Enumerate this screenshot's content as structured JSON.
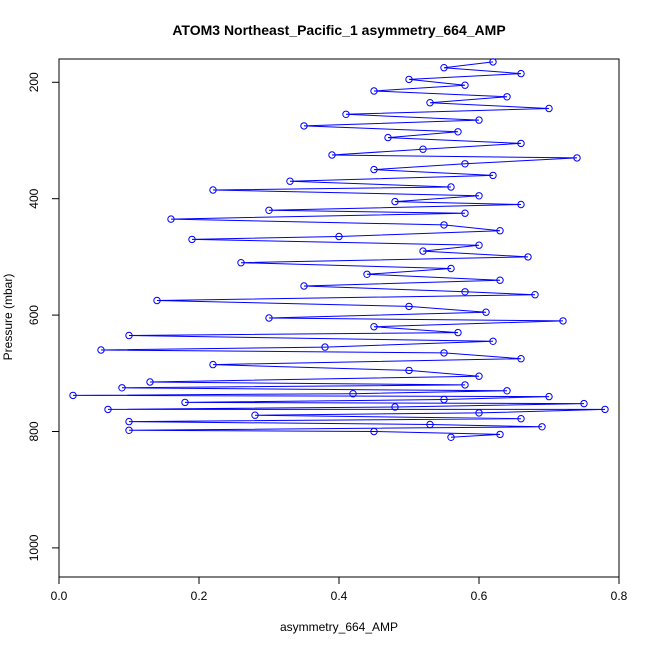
{
  "chart_data": {
    "type": "scatter",
    "title": "ATOM3 Northeast_Pacific_1 asymmetry_664_AMP",
    "xlabel": "asymmetry_664_AMP",
    "ylabel": "Pressure (mbar)",
    "xlim": [
      0.0,
      0.8
    ],
    "ylim": [
      1050,
      160
    ],
    "y_inverted": true,
    "xticks": [
      0.0,
      0.2,
      0.4,
      0.6,
      0.8
    ],
    "xtick_labels": [
      "0.0",
      "0.2",
      "0.4",
      "0.6",
      "0.8"
    ],
    "yticks": [
      200,
      400,
      600,
      800,
      1000
    ],
    "ytick_labels": [
      "200",
      "400",
      "600",
      "800",
      "1000"
    ],
    "grid": false,
    "legend": "none",
    "marker": "open-circle",
    "connected": true,
    "series_color": "#0000ff",
    "series": [
      {
        "points": [
          [
            0.62,
            165
          ],
          [
            0.55,
            175
          ],
          [
            0.66,
            185
          ],
          [
            0.5,
            195
          ],
          [
            0.58,
            205
          ],
          [
            0.45,
            215
          ],
          [
            0.64,
            225
          ],
          [
            0.53,
            235
          ],
          [
            0.7,
            245
          ],
          [
            0.41,
            255
          ],
          [
            0.6,
            265
          ],
          [
            0.35,
            275
          ],
          [
            0.57,
            285
          ],
          [
            0.47,
            295
          ],
          [
            0.66,
            305
          ],
          [
            0.52,
            315
          ],
          [
            0.39,
            325
          ],
          [
            0.74,
            330
          ],
          [
            0.58,
            340
          ],
          [
            0.45,
            350
          ],
          [
            0.62,
            360
          ],
          [
            0.33,
            370
          ],
          [
            0.56,
            380
          ],
          [
            0.22,
            385
          ],
          [
            0.6,
            395
          ],
          [
            0.48,
            405
          ],
          [
            0.66,
            410
          ],
          [
            0.3,
            420
          ],
          [
            0.58,
            425
          ],
          [
            0.16,
            435
          ],
          [
            0.55,
            445
          ],
          [
            0.63,
            455
          ],
          [
            0.4,
            465
          ],
          [
            0.19,
            470
          ],
          [
            0.6,
            480
          ],
          [
            0.52,
            490
          ],
          [
            0.67,
            500
          ],
          [
            0.26,
            510
          ],
          [
            0.56,
            520
          ],
          [
            0.44,
            530
          ],
          [
            0.63,
            540
          ],
          [
            0.35,
            550
          ],
          [
            0.58,
            560
          ],
          [
            0.68,
            565
          ],
          [
            0.14,
            575
          ],
          [
            0.5,
            585
          ],
          [
            0.61,
            595
          ],
          [
            0.3,
            605
          ],
          [
            0.72,
            610
          ],
          [
            0.45,
            620
          ],
          [
            0.57,
            630
          ],
          [
            0.1,
            635
          ],
          [
            0.62,
            645
          ],
          [
            0.38,
            655
          ],
          [
            0.06,
            660
          ],
          [
            0.55,
            665
          ],
          [
            0.66,
            675
          ],
          [
            0.22,
            685
          ],
          [
            0.5,
            695
          ],
          [
            0.6,
            705
          ],
          [
            0.13,
            715
          ],
          [
            0.58,
            720
          ],
          [
            0.09,
            725
          ],
          [
            0.64,
            730
          ],
          [
            0.42,
            735
          ],
          [
            0.02,
            738
          ],
          [
            0.7,
            740
          ],
          [
            0.55,
            745
          ],
          [
            0.18,
            750
          ],
          [
            0.75,
            752
          ],
          [
            0.48,
            758
          ],
          [
            0.07,
            762
          ],
          [
            0.78,
            762
          ],
          [
            0.6,
            768
          ],
          [
            0.28,
            772
          ],
          [
            0.66,
            778
          ],
          [
            0.1,
            783
          ],
          [
            0.53,
            788
          ],
          [
            0.69,
            792
          ],
          [
            0.1,
            798
          ],
          [
            0.45,
            800
          ],
          [
            0.63,
            805
          ],
          [
            0.56,
            810
          ]
        ]
      }
    ]
  }
}
